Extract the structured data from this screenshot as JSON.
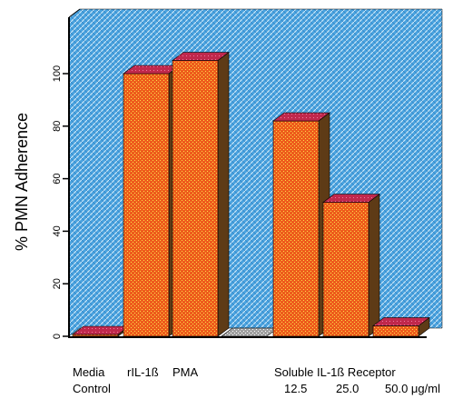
{
  "chart_data": {
    "type": "bar",
    "style": "3d",
    "ylabel": "% PMN Adherence",
    "ylim": [
      0,
      110
    ],
    "yticks": [
      0,
      20,
      40,
      60,
      80,
      100
    ],
    "ytick_labels": [
      "0",
      "20",
      "40",
      "60",
      "80",
      "100"
    ],
    "grid": false,
    "categories": [
      "Media Control",
      "rIL-1ß",
      "PMA",
      "",
      "12.5",
      "25.0",
      "50.0"
    ],
    "values": [
      0,
      100,
      105,
      0,
      82,
      51,
      4
    ],
    "bar_fill": [
      "orange",
      "orange",
      "orange",
      "gray",
      "orange",
      "orange",
      "orange"
    ],
    "colors": {
      "background": "#4aa3df",
      "bar_front": "#ee5c1c",
      "bar_top": "#c0284c",
      "bar_side": "#5e3b16",
      "empty_bar": "#a0a0a0"
    },
    "x_labels": {
      "media_line1": "Media",
      "media_line2": "Control",
      "ril": "rIL-1ß",
      "pma": "PMA",
      "receptor": "Soluble IL-1ß Receptor",
      "dose_1": "12.5",
      "dose_2": "25.0",
      "dose_3": "50.0 μg/ml"
    }
  }
}
